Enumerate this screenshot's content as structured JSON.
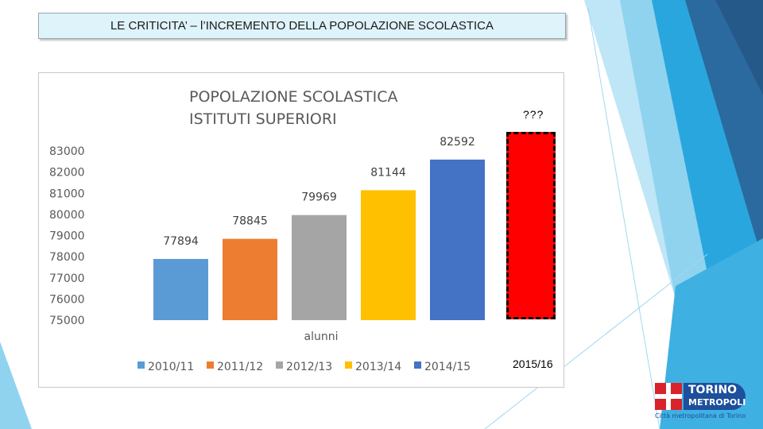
{
  "slide": {
    "title": "LE CRITICITA’ – l’INCREMENTO DELLA POPOLAZIONE SCOLASTICA"
  },
  "projection": {
    "marker": "???",
    "label": "2015/16",
    "color": "#ff0000"
  },
  "logo": {
    "line1": "TORINO",
    "line2": "METROPOLI",
    "subtitle": "Città metropolitana di Torino"
  },
  "colors": {
    "theme_light": "#8fd3ef",
    "theme_mid": "#2aa6de",
    "theme_dark": "#2b6a9e"
  },
  "chart_data": {
    "type": "bar",
    "title_line1": "POPOLAZIONE SCOLASTICA",
    "title_line2": "ISTITUTI SUPERIORI",
    "xlabel": "alunni",
    "ylabel": "",
    "ylim": [
      75000,
      83000
    ],
    "yticks": [
      75000,
      76000,
      77000,
      78000,
      79000,
      80000,
      81000,
      82000,
      83000
    ],
    "legend_position": "bottom",
    "grid": false,
    "series": [
      {
        "name": "2010/11",
        "value": 77894,
        "color": "#5b9bd5"
      },
      {
        "name": "2011/12",
        "value": 78845,
        "color": "#ed7d31"
      },
      {
        "name": "2012/13",
        "value": 79969,
        "color": "#a5a5a5"
      },
      {
        "name": "2013/14",
        "value": 81144,
        "color": "#ffc000"
      },
      {
        "name": "2014/15",
        "value": 82592,
        "color": "#4472c4"
      }
    ]
  }
}
